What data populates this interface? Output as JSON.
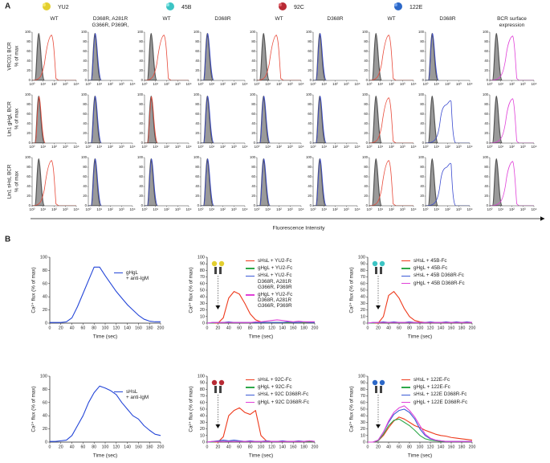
{
  "panel_a": {
    "label": "A",
    "viruses": [
      "YU2",
      "45B",
      "92C",
      "122E"
    ],
    "columns": [
      "WT",
      "D368R, A281R\nG366R, P369R,",
      "WT",
      "D368R",
      "WT",
      "D368R",
      "WT",
      "D368R",
      "BCR surface\nexpression"
    ],
    "rows": [
      "VRC01 BCR",
      "Lin1 gHgL BCR",
      "Lin1 sHsL BCR"
    ],
    "y_label": "% of max",
    "ylim": [
      0,
      100
    ],
    "yticks": [
      0,
      20,
      40,
      60,
      80,
      100
    ],
    "xlim": [
      0,
      4
    ],
    "xticks": [
      {
        "value": 0,
        "label": "10⁰"
      },
      {
        "value": 1,
        "label": "10¹"
      },
      {
        "value": 2,
        "label": "10²"
      },
      {
        "value": 3,
        "label": "10³"
      },
      {
        "value": 4,
        "label": "10⁴"
      }
    ],
    "x_label": "Fluorescence Intensity"
  },
  "panel_b_label": "B",
  "chart_data": [
    {
      "type": "line",
      "ylabel": "Ca²⁺ flux (% of max)",
      "xlabel": "Time (sec)",
      "xlim": [
        0,
        200
      ],
      "ylim": [
        0,
        100
      ],
      "xticks": [
        0,
        20,
        40,
        60,
        80,
        100,
        120,
        140,
        160,
        180,
        200
      ],
      "yticks": [
        0,
        20,
        40,
        60,
        80,
        100
      ],
      "x": [
        0,
        10,
        20,
        30,
        40,
        50,
        60,
        70,
        80,
        90,
        100,
        110,
        120,
        130,
        140,
        150,
        160,
        170,
        180,
        190,
        200
      ],
      "series": [
        {
          "name": "gHgL\n+ anti-IgM",
          "color": "#2446d8",
          "values": [
            1,
            1,
            1,
            2,
            8,
            25,
            45,
            65,
            85,
            85,
            72,
            60,
            48,
            38,
            28,
            20,
            12,
            6,
            3,
            2,
            2
          ]
        }
      ]
    },
    {
      "type": "line",
      "ylabel": "Ca²⁺ flux (% of max)",
      "xlabel": "Time (sec)",
      "xlim": [
        0,
        200
      ],
      "ylim": [
        0,
        100
      ],
      "xticks": [
        0,
        20,
        40,
        60,
        80,
        100,
        120,
        140,
        160,
        180,
        200
      ],
      "yticks": [
        0,
        10,
        20,
        30,
        40,
        50,
        60,
        70,
        80,
        90,
        100
      ],
      "x": [
        0,
        10,
        20,
        30,
        40,
        50,
        60,
        70,
        80,
        90,
        100,
        110,
        120,
        130,
        140,
        150,
        160,
        170,
        180,
        190,
        200
      ],
      "series": [
        {
          "name": "sHsL + YU2-Fc",
          "color": "#ee3a1c",
          "values": [
            0,
            0,
            0,
            8,
            38,
            48,
            44,
            30,
            14,
            5,
            2,
            1,
            1,
            1,
            1,
            1,
            1,
            1,
            1,
            1,
            1
          ]
        },
        {
          "name": "gHgL + YU2-Fc",
          "color": "#2ea84a",
          "values": [
            0,
            0,
            1,
            1,
            1,
            1,
            1,
            1,
            1,
            1,
            1,
            1,
            1,
            1,
            1,
            1,
            1,
            1,
            1,
            1,
            1
          ]
        },
        {
          "name": "sHsL + YU2-Fc\nD368R, A281R\nG366R, P369R",
          "color": "#3b5bd6",
          "values": [
            0,
            1,
            1,
            1,
            2,
            1,
            1,
            1,
            1,
            1,
            1,
            1,
            1,
            1,
            1,
            2,
            1,
            1,
            2,
            1,
            1
          ]
        },
        {
          "name": "gHgL + YU2-Fc\nD368R, A281R\nG366R, P369R",
          "color": "#e040d8",
          "values": [
            0,
            1,
            1,
            1,
            1,
            1,
            1,
            1,
            1,
            2,
            2,
            3,
            4,
            5,
            4,
            3,
            2,
            3,
            2,
            2,
            2
          ]
        }
      ]
    },
    {
      "type": "line",
      "ylabel": "Ca²⁺ flux (% of max)",
      "xlabel": "Time (sec)",
      "xlim": [
        0,
        200
      ],
      "ylim": [
        0,
        100
      ],
      "xticks": [
        0,
        20,
        40,
        60,
        80,
        100,
        120,
        140,
        160,
        180,
        200
      ],
      "yticks": [
        0,
        10,
        20,
        30,
        40,
        50,
        60,
        70,
        80,
        90,
        100
      ],
      "x": [
        0,
        10,
        20,
        30,
        40,
        50,
        60,
        70,
        80,
        90,
        100,
        110,
        120,
        130,
        140,
        150,
        160,
        170,
        180,
        190,
        200
      ],
      "series": [
        {
          "name": "sHsL + 45B-Fc",
          "color": "#ee3a1c",
          "values": [
            0,
            0,
            0,
            10,
            42,
            48,
            38,
            22,
            10,
            4,
            2,
            1,
            1,
            1,
            1,
            1,
            1,
            1,
            1,
            1,
            1
          ]
        },
        {
          "name": "gHgL + 45B-Fc",
          "color": "#2ea84a",
          "values": [
            0,
            0,
            1,
            1,
            1,
            1,
            1,
            1,
            1,
            1,
            1,
            1,
            1,
            1,
            1,
            1,
            1,
            1,
            1,
            1,
            1
          ]
        },
        {
          "name": "sHsL + 45B D368R-Fc",
          "color": "#3b5bd6",
          "values": [
            0,
            1,
            1,
            2,
            1,
            2,
            1,
            1,
            2,
            1,
            1,
            1,
            2,
            1,
            1,
            2,
            1,
            2,
            1,
            2,
            1
          ]
        },
        {
          "name": "gHgL + 45B D368R-Fc",
          "color": "#e040d8",
          "values": [
            0,
            1,
            1,
            1,
            1,
            1,
            1,
            1,
            1,
            1,
            1,
            1,
            1,
            1,
            1,
            1,
            1,
            1,
            1,
            1,
            1
          ]
        }
      ]
    },
    {
      "type": "line",
      "ylabel": "Ca²⁺ flux (% of max)",
      "xlabel": "Time (sec)",
      "xlim": [
        0,
        200
      ],
      "ylim": [
        0,
        100
      ],
      "xticks": [
        0,
        20,
        40,
        60,
        80,
        100,
        120,
        140,
        160,
        180,
        200
      ],
      "yticks": [
        0,
        20,
        40,
        60,
        80,
        100
      ],
      "x": [
        0,
        10,
        20,
        30,
        40,
        50,
        60,
        70,
        80,
        90,
        100,
        110,
        120,
        130,
        140,
        150,
        160,
        170,
        180,
        190,
        200
      ],
      "series": [
        {
          "name": "sHsL\n+ anti-IgM",
          "color": "#2446d8",
          "values": [
            1,
            1,
            2,
            3,
            10,
            25,
            40,
            60,
            75,
            85,
            82,
            78,
            72,
            60,
            50,
            40,
            35,
            25,
            18,
            12,
            10
          ]
        }
      ]
    },
    {
      "type": "line",
      "ylabel": "Ca²⁺ flux (% of max)",
      "xlabel": "Time (sec)",
      "xlim": [
        0,
        200
      ],
      "ylim": [
        0,
        100
      ],
      "xticks": [
        0,
        20,
        40,
        60,
        80,
        100,
        120,
        140,
        160,
        180,
        200
      ],
      "yticks": [
        0,
        10,
        20,
        30,
        40,
        50,
        60,
        70,
        80,
        90,
        100
      ],
      "x": [
        0,
        10,
        20,
        30,
        40,
        50,
        60,
        70,
        80,
        90,
        100,
        110,
        120,
        130,
        140,
        150,
        160,
        170,
        180,
        190,
        200
      ],
      "series": [
        {
          "name": "sHsL + 92C-Fc",
          "color": "#ee3a1c",
          "values": [
            0,
            0,
            0,
            8,
            40,
            48,
            52,
            45,
            42,
            48,
            10,
            2,
            1,
            1,
            1,
            1,
            1,
            1,
            1,
            1,
            1
          ]
        },
        {
          "name": "gHgL + 92C-Fc",
          "color": "#2ea84a",
          "values": [
            0,
            0,
            1,
            1,
            1,
            1,
            1,
            1,
            1,
            1,
            1,
            1,
            1,
            1,
            1,
            1,
            1,
            1,
            1,
            1,
            1
          ]
        },
        {
          "name": "sHsL + 92C D368R-Fc",
          "color": "#3b5bd6",
          "values": [
            0,
            1,
            2,
            3,
            2,
            3,
            2,
            1,
            2,
            1,
            1,
            2,
            1,
            1,
            2,
            1,
            1,
            2,
            1,
            2,
            1
          ]
        },
        {
          "name": "gHgL + 92C D368R-Fc",
          "color": "#e040d8",
          "values": [
            0,
            1,
            1,
            1,
            1,
            1,
            1,
            1,
            1,
            1,
            1,
            1,
            1,
            1,
            1,
            1,
            1,
            1,
            1,
            2,
            1
          ]
        }
      ]
    },
    {
      "type": "line",
      "ylabel": "Ca²⁺ flux (% of max)",
      "xlabel": "Time (sec)",
      "xlim": [
        0,
        200
      ],
      "ylim": [
        0,
        100
      ],
      "xticks": [
        0,
        20,
        40,
        60,
        80,
        100,
        120,
        140,
        160,
        180,
        200
      ],
      "yticks": [
        0,
        10,
        20,
        30,
        40,
        50,
        60,
        70,
        80,
        90,
        100
      ],
      "x": [
        0,
        10,
        20,
        30,
        40,
        50,
        60,
        70,
        80,
        90,
        100,
        110,
        120,
        130,
        140,
        150,
        160,
        170,
        180,
        190,
        200
      ],
      "series": [
        {
          "name": "sHsL + 122E-Fc",
          "color": "#ee3a1c",
          "values": [
            0,
            0,
            2,
            10,
            22,
            32,
            38,
            35,
            30,
            25,
            22,
            18,
            15,
            12,
            10,
            9,
            7,
            6,
            5,
            4,
            3
          ]
        },
        {
          "name": "gHgL + 122E-Fc",
          "color": "#2ea84a",
          "values": [
            0,
            0,
            2,
            12,
            25,
            33,
            35,
            30,
            25,
            18,
            10,
            5,
            3,
            2,
            1,
            1,
            1,
            1,
            1,
            1,
            1
          ]
        },
        {
          "name": "sHsL + 122E D368R-Fc",
          "color": "#3b5bd6",
          "values": [
            0,
            0,
            3,
            15,
            30,
            42,
            48,
            50,
            45,
            35,
            20,
            10,
            5,
            3,
            2,
            1,
            1,
            1,
            1,
            1,
            1
          ]
        },
        {
          "name": "gHgL + 122E D368R-Fc",
          "color": "#e040d8",
          "values": [
            0,
            0,
            3,
            15,
            32,
            45,
            52,
            55,
            48,
            38,
            25,
            12,
            6,
            3,
            2,
            1,
            1,
            1,
            1,
            1,
            1
          ]
        }
      ]
    }
  ]
}
